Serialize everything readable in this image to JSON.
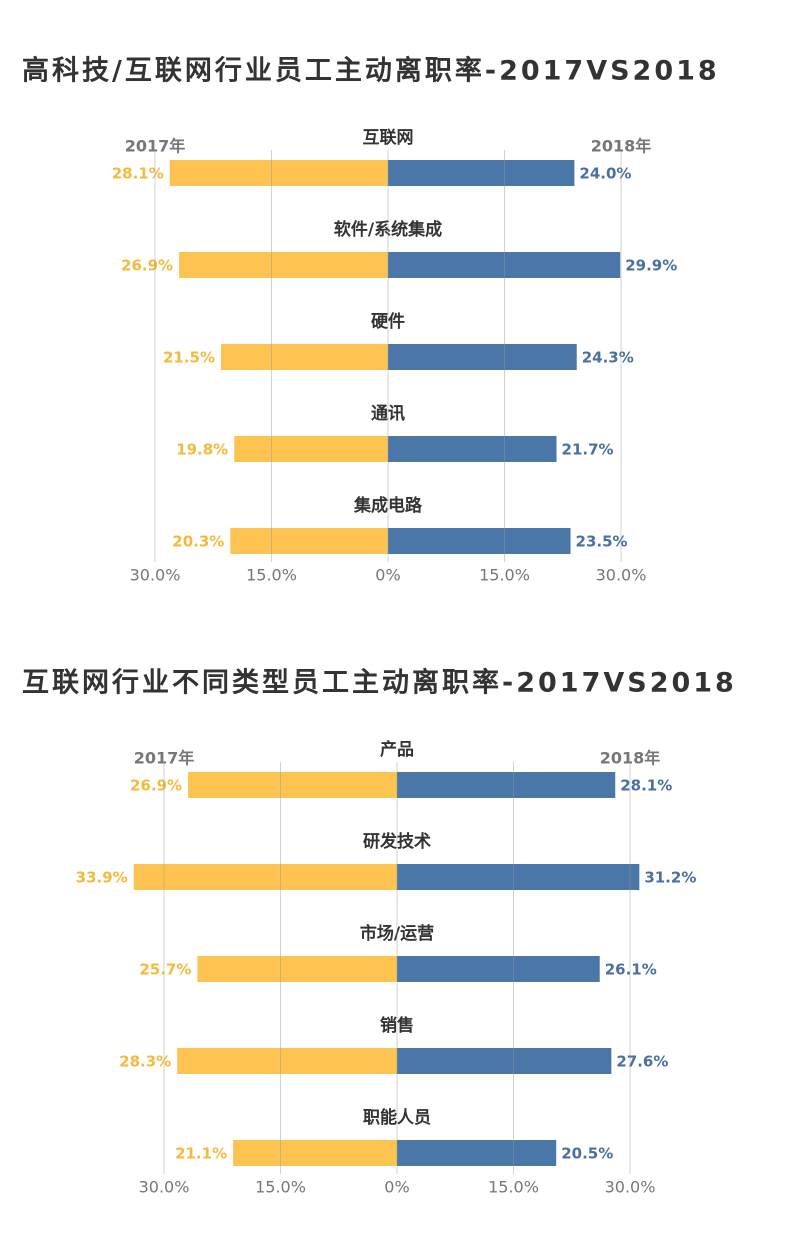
{
  "chart_data": [
    {
      "type": "butterfly",
      "title": "高科技/互联网行业员工主动离职率-2017VS2018",
      "categories": [
        "互联网",
        "软件/系统集成",
        "硬件",
        "通讯",
        "集成电路"
      ],
      "series": [
        {
          "name": "2017年",
          "color": "#fdc350",
          "values": [
            28.1,
            26.9,
            21.5,
            19.8,
            20.3
          ],
          "value_labels": [
            "28.1%",
            "26.9%",
            "21.5%",
            "19.8%",
            "20.3%"
          ]
        },
        {
          "name": "2018年",
          "color": "#4a76a8",
          "values": [
            24.0,
            29.9,
            24.3,
            21.7,
            23.5
          ],
          "value_labels": [
            "24.0%",
            "29.9%",
            "24.3%",
            "21.7%",
            "23.5%"
          ]
        }
      ],
      "xlim": [
        -30,
        30
      ],
      "xticks": [
        {
          "value": -30,
          "label": "30.0%"
        },
        {
          "value": -15,
          "label": "15.0%"
        },
        {
          "value": 0,
          "label": "0%"
        },
        {
          "value": 15,
          "label": "15.0%"
        },
        {
          "value": 30,
          "label": "30.0%"
        }
      ],
      "grid": true
    },
    {
      "type": "butterfly",
      "title": "互联网行业不同类型员工主动离职率-2017VS2018",
      "categories": [
        "产品",
        "研发技术",
        "市场/运营",
        "销售",
        "职能人员"
      ],
      "series": [
        {
          "name": "2017年",
          "color": "#fdc350",
          "values": [
            26.9,
            33.9,
            25.7,
            28.3,
            21.1
          ],
          "value_labels": [
            "26.9%",
            "33.9%",
            "25.7%",
            "28.3%",
            "21.1%"
          ]
        },
        {
          "name": "2018年",
          "color": "#4a76a8",
          "values": [
            28.1,
            31.2,
            26.1,
            27.6,
            20.5
          ],
          "value_labels": [
            "28.1%",
            "31.2%",
            "26.1%",
            "27.6%",
            "20.5%"
          ]
        }
      ],
      "xlim": [
        -30,
        30
      ],
      "xticks": [
        {
          "value": -30,
          "label": "30.0%"
        },
        {
          "value": -15,
          "label": "15.0%"
        },
        {
          "value": 0,
          "label": "0%"
        },
        {
          "value": 15,
          "label": "15.0%"
        },
        {
          "value": 30,
          "label": "30.0%"
        }
      ],
      "grid": true
    }
  ]
}
